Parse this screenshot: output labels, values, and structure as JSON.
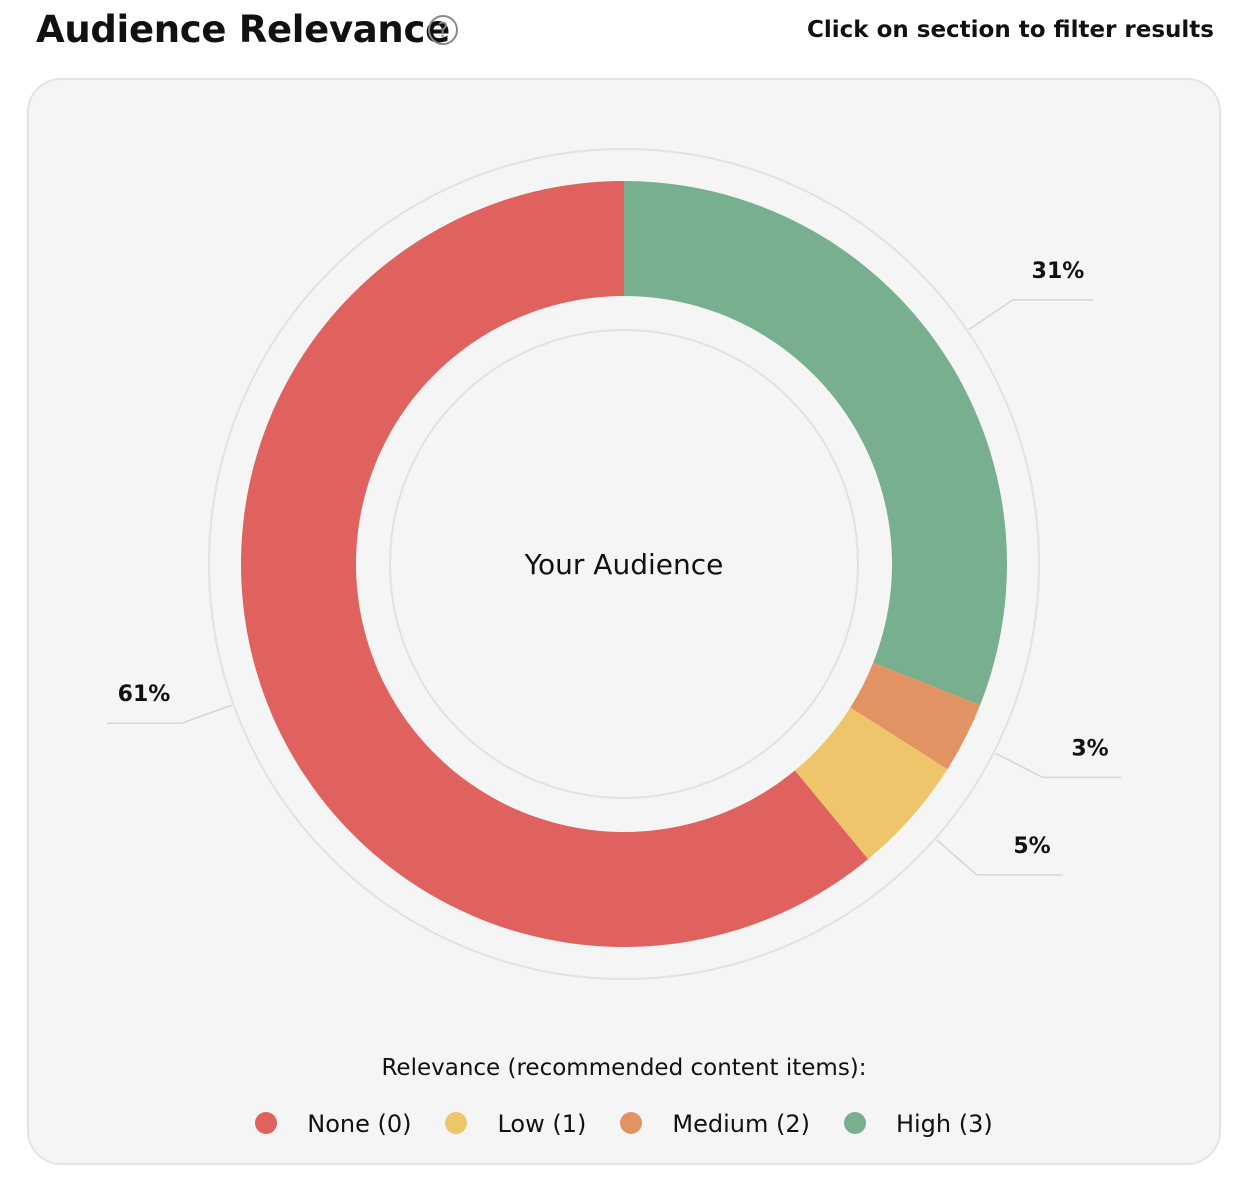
{
  "header": {
    "title": "Audience Relevance",
    "help_icon": "question-circle-icon",
    "hint": "Click on section to filter results"
  },
  "colors": {
    "none": "#e0625f",
    "low": "#eec56b",
    "medium": "#e29363",
    "high": "#77af8f",
    "card_bg": "#f5f5f5",
    "leader": "#d6d6d6"
  },
  "chart_data": {
    "type": "pie",
    "donut": true,
    "center_label": "Your Audience",
    "slices": [
      {
        "key": "high",
        "label": "High (3)",
        "value": 31,
        "display": "31%",
        "color": "#77af8f"
      },
      {
        "key": "medium",
        "label": "Medium (2)",
        "value": 3,
        "display": "3%",
        "color": "#e29363"
      },
      {
        "key": "low",
        "label": "Low (1)",
        "value": 5,
        "display": "5%",
        "color": "#eec56b"
      },
      {
        "key": "none",
        "label": "None (0)",
        "value": 61,
        "display": "61%",
        "color": "#e0625f"
      }
    ],
    "legend_title": "Relevance (recommended content items):",
    "legend_order": [
      "none",
      "low",
      "medium",
      "high"
    ]
  }
}
